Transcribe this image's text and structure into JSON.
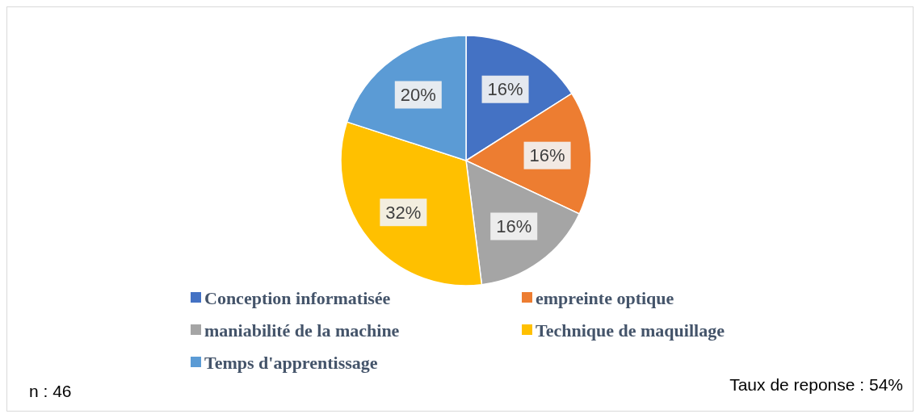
{
  "chart_data": {
    "type": "pie",
    "categories": [
      "Conception informatisée",
      "empreinte optique",
      "maniabilité de la machine",
      "Technique de maquillage",
      "Temps d'apprentissage"
    ],
    "values": [
      16,
      16,
      16,
      32,
      20
    ],
    "colors": [
      "#4472c4",
      "#ed7d31",
      "#a5a5a5",
      "#ffc000",
      "#5b9bd5"
    ],
    "value_labels": [
      "16%",
      "16%",
      "16%",
      "32%",
      "20%"
    ],
    "legend": "bottom",
    "annotations": [
      "n : 46",
      "Taux de reponse : 54%"
    ]
  }
}
